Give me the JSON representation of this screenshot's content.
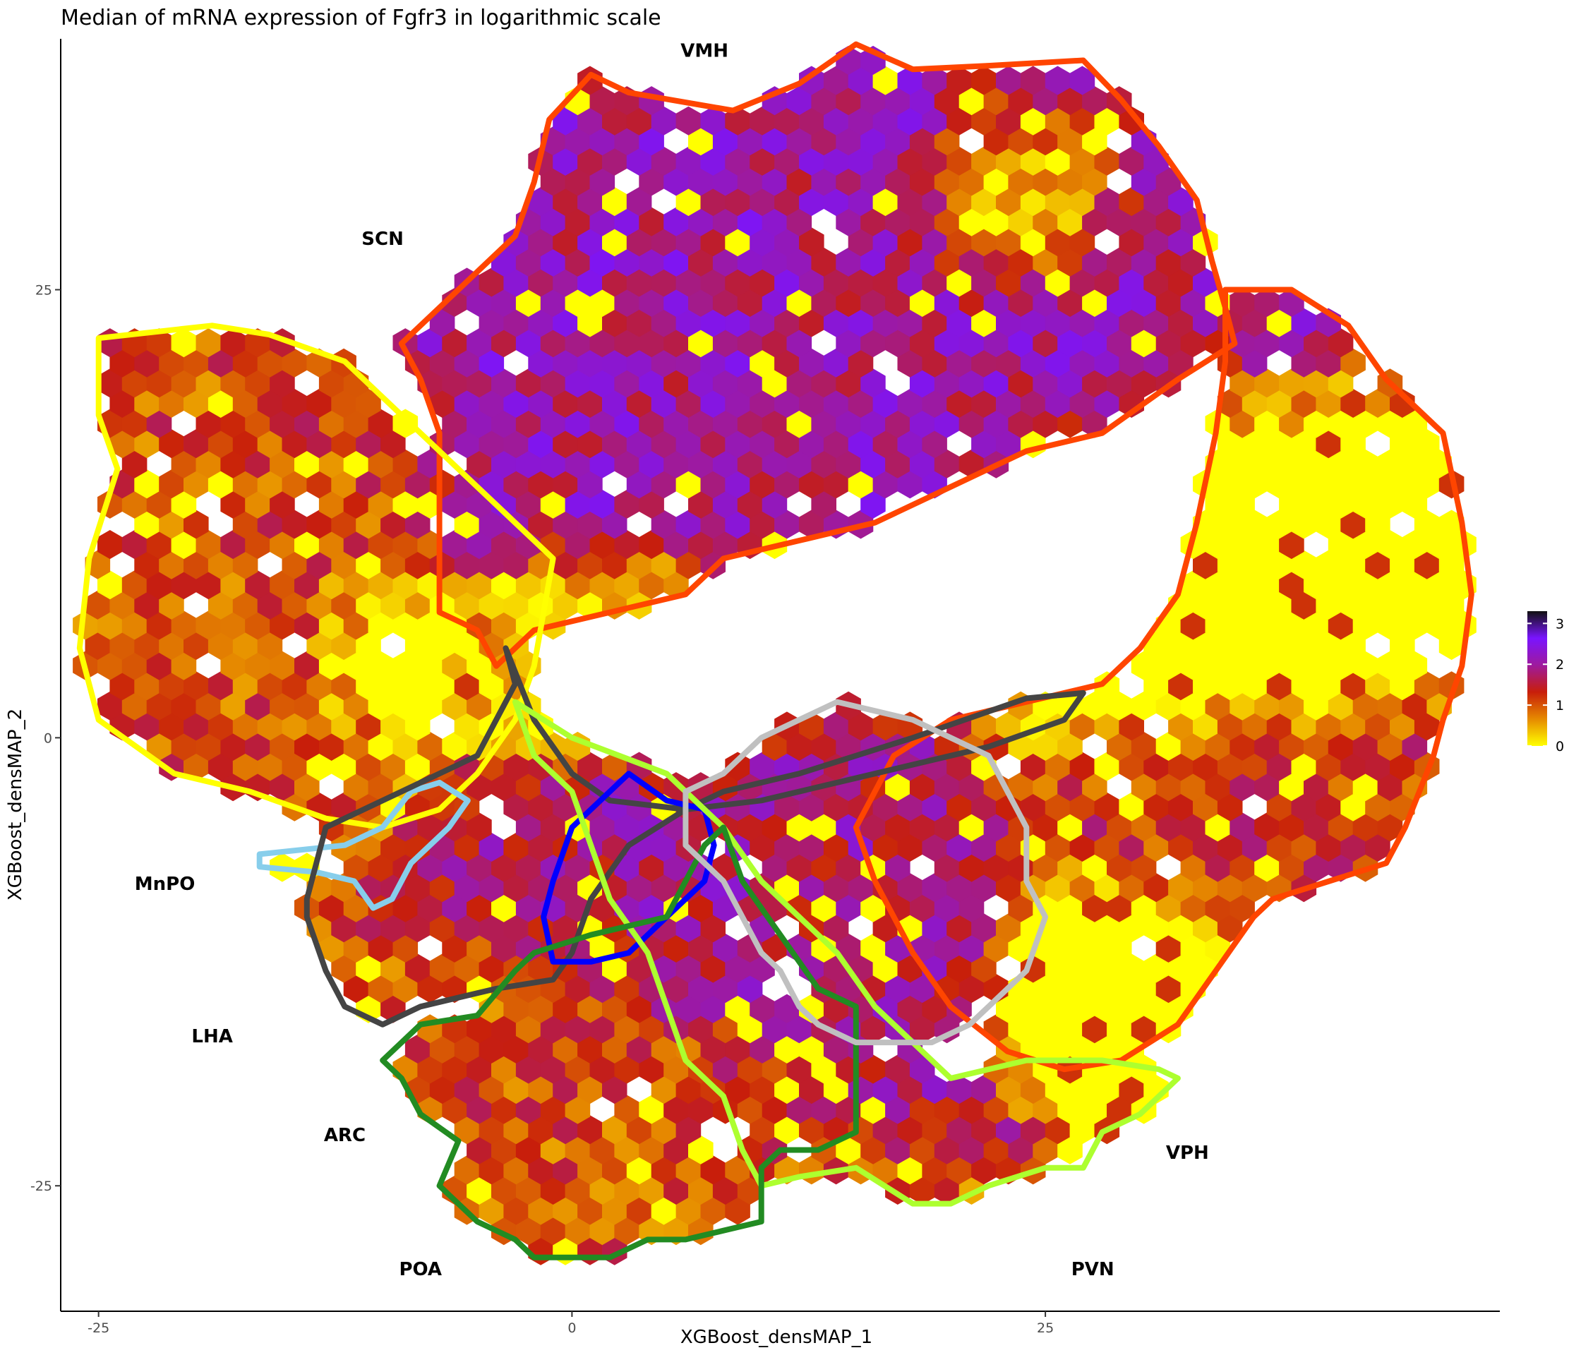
{
  "chart_data": {
    "type": "heatmap",
    "title": "Median of mRNA expression of Fgfr3 in logarithmic scale",
    "xlabel": "XGBoost_densMAP_1",
    "ylabel": "XGBoost_densMAP_2",
    "xlim": [
      -27,
      49
    ],
    "ylim": [
      -32,
      39
    ],
    "x_ticks": [
      -25,
      0,
      25
    ],
    "y_ticks": [
      -25,
      0,
      25
    ],
    "x_tick_labels": [
      "-25",
      "0",
      "25"
    ],
    "y_tick_labels": [
      "-25",
      "0",
      "25"
    ],
    "grid": false,
    "colorbar": {
      "min": 0,
      "max": 3.3,
      "ticks": [
        0,
        1,
        2,
        3
      ],
      "tick_labels": [
        "0",
        "1",
        "2",
        "3"
      ],
      "colors": [
        "#ffff00",
        "#e68a00",
        "#c81e0a",
        "#9e1a9e",
        "#7a14ff",
        "#111111"
      ],
      "placement": "right"
    },
    "hexbins": {
      "bin_width": 1.3,
      "clusters": [
        {
          "cx": 10,
          "cy": 25,
          "rx": 16,
          "ry": 13,
          "level": 2.0
        },
        {
          "cx": 23,
          "cy": 30,
          "rx": 4,
          "ry": 4,
          "level": 0.0
        },
        {
          "cx": -17,
          "cy": 10,
          "rx": 7,
          "ry": 10,
          "level": 1.1
        },
        {
          "cx": -10,
          "cy": 5,
          "rx": 3,
          "ry": 4,
          "level": 0.0
        },
        {
          "cx": 34,
          "cy": 8,
          "rx": 8,
          "ry": 7,
          "level": 0.0
        },
        {
          "cx": 37,
          "cy": -4,
          "rx": 8,
          "ry": 5,
          "level": 1.3
        },
        {
          "cx": 28,
          "cy": -13,
          "rx": 4,
          "ry": 4,
          "level": 0.0
        },
        {
          "cx": 10,
          "cy": -10,
          "rx": 9,
          "ry": 7,
          "level": 1.8
        },
        {
          "cx": 0,
          "cy": -20,
          "rx": 9,
          "ry": 6,
          "level": 1.1
        },
        {
          "cx": 4,
          "cy": 5,
          "rx": 7,
          "ry": 4,
          "level": 0.3
        }
      ]
    },
    "regions": [
      {
        "name": "VMH",
        "color": "#ff4500",
        "outline": [
          [
            -1.2,
            34.5
          ],
          [
            1,
            37
          ],
          [
            3,
            36
          ],
          [
            8.5,
            35
          ],
          [
            12,
            36.5
          ],
          [
            15,
            38.7
          ],
          [
            18,
            37.3
          ],
          [
            22,
            37.5
          ],
          [
            27,
            37.8
          ],
          [
            29,
            35.6
          ],
          [
            31,
            33
          ],
          [
            33,
            30
          ],
          [
            33.8,
            26.6
          ],
          [
            34.5,
            24
          ],
          [
            35,
            22
          ],
          [
            32,
            20
          ],
          [
            28,
            17
          ],
          [
            24,
            16
          ],
          [
            20,
            14
          ],
          [
            16,
            12
          ],
          [
            12,
            11
          ],
          [
            8,
            10
          ],
          [
            6,
            8
          ],
          [
            -2,
            6
          ],
          [
            -4,
            4
          ],
          [
            -5,
            6
          ],
          [
            -7,
            7
          ],
          [
            -7,
            12
          ],
          [
            -7,
            17
          ],
          [
            -8,
            20
          ],
          [
            -9,
            22
          ],
          [
            -7,
            24
          ],
          [
            -5,
            26
          ],
          [
            -3,
            28
          ],
          [
            -2,
            31
          ],
          [
            -1.2,
            34.5
          ]
        ]
      },
      {
        "name": "SCN",
        "color": "#ffff00",
        "outline": [
          [
            -25,
            22.3
          ],
          [
            -19,
            23
          ],
          [
            -16,
            22.5
          ],
          [
            -12,
            21
          ],
          [
            -10,
            19
          ],
          [
            -7,
            16
          ],
          [
            -4,
            13
          ],
          [
            -1,
            10
          ],
          [
            -2,
            4
          ],
          [
            -3,
            1
          ],
          [
            -5,
            -2
          ],
          [
            -7,
            -4
          ],
          [
            -10,
            -5
          ],
          [
            -13,
            -4.5
          ],
          [
            -17,
            -3
          ],
          [
            -21,
            -2
          ],
          [
            -23,
            -0.5
          ],
          [
            -25,
            1
          ],
          [
            -26,
            5
          ],
          [
            -25.5,
            10
          ],
          [
            -24,
            15
          ],
          [
            -25,
            18
          ],
          [
            -25,
            22.3
          ]
        ]
      },
      {
        "name": "VPH",
        "color": "#ff4500",
        "outline": [
          [
            34.5,
            25
          ],
          [
            38,
            25
          ],
          [
            41,
            23
          ],
          [
            43,
            20
          ],
          [
            46,
            17
          ],
          [
            47,
            12
          ],
          [
            47.5,
            8
          ],
          [
            47,
            4
          ],
          [
            46,
            1
          ],
          [
            45.5,
            -1
          ],
          [
            44,
            -5
          ],
          [
            43,
            -7
          ],
          [
            40,
            -8
          ],
          [
            37,
            -9
          ],
          [
            36,
            -10
          ],
          [
            34,
            -13
          ],
          [
            32,
            -16
          ],
          [
            29,
            -18
          ],
          [
            26,
            -18.5
          ],
          [
            23,
            -17.5
          ],
          [
            20,
            -15
          ],
          [
            18,
            -12
          ],
          [
            16,
            -8
          ],
          [
            15,
            -5
          ],
          [
            17,
            -1
          ],
          [
            20,
            1
          ],
          [
            24,
            2
          ],
          [
            28,
            3
          ],
          [
            30,
            5
          ],
          [
            32,
            8
          ],
          [
            33,
            12
          ],
          [
            34,
            17
          ],
          [
            34.5,
            21
          ],
          [
            34.5,
            25
          ]
        ]
      },
      {
        "name": "MnPO",
        "color": "#87ceeb",
        "outline": [
          [
            -16.5,
            -6.5
          ],
          [
            -12,
            -6
          ],
          [
            -10,
            -5
          ],
          [
            -8.5,
            -3
          ],
          [
            -7,
            -2.5
          ],
          [
            -5.5,
            -3.5
          ],
          [
            -6.5,
            -5
          ],
          [
            -8.5,
            -7
          ],
          [
            -9.5,
            -9
          ],
          [
            -10.5,
            -9.5
          ],
          [
            -11.5,
            -8
          ],
          [
            -13.5,
            -7.5
          ],
          [
            -16.5,
            -7.2
          ],
          [
            -16.5,
            -6.5
          ]
        ]
      },
      {
        "name": "LHA",
        "color": "#444444",
        "outline": [
          [
            -14,
            -9
          ],
          [
            -13,
            -5
          ],
          [
            -9,
            -3
          ],
          [
            -5,
            -1
          ],
          [
            -3,
            3
          ],
          [
            -3.5,
            5
          ],
          [
            -2,
            1
          ],
          [
            0,
            -2
          ],
          [
            2,
            -3.5
          ],
          [
            6,
            -4
          ],
          [
            10,
            -3.5
          ],
          [
            16,
            -2
          ],
          [
            22,
            -0.5
          ],
          [
            26,
            1
          ],
          [
            27,
            2.5
          ],
          [
            24,
            2.2
          ],
          [
            18,
            0
          ],
          [
            12,
            -2
          ],
          [
            8,
            -3
          ],
          [
            6,
            -4
          ],
          [
            3,
            -6
          ],
          [
            1,
            -9
          ],
          [
            0,
            -12
          ],
          [
            -1,
            -13.5
          ],
          [
            -4,
            -14
          ],
          [
            -8,
            -15
          ],
          [
            -10,
            -16
          ],
          [
            -12,
            -15
          ],
          [
            -13,
            -13
          ],
          [
            -14,
            -10
          ],
          [
            -14,
            -9
          ]
        ]
      },
      {
        "name": "ARC",
        "color": "#0000ff",
        "outline": [
          [
            0,
            -5
          ],
          [
            2,
            -3
          ],
          [
            3,
            -2
          ],
          [
            5,
            -3.5
          ],
          [
            7,
            -4
          ],
          [
            7.5,
            -6
          ],
          [
            7,
            -8
          ],
          [
            6,
            -9
          ],
          [
            5,
            -10
          ],
          [
            4,
            -11
          ],
          [
            3,
            -12
          ],
          [
            1,
            -12.5
          ],
          [
            -1,
            -12.5
          ],
          [
            -1.5,
            -10
          ],
          [
            -1,
            -8
          ],
          [
            0,
            -5
          ]
        ]
      },
      {
        "name": "PVN",
        "color": "#adff2f",
        "outline": [
          [
            -3,
            2
          ],
          [
            0,
            0
          ],
          [
            5,
            -2
          ],
          [
            8,
            -5
          ],
          [
            10,
            -8
          ],
          [
            12,
            -10
          ],
          [
            14,
            -12
          ],
          [
            16,
            -15
          ],
          [
            18,
            -17
          ],
          [
            20,
            -19
          ],
          [
            24,
            -18
          ],
          [
            28,
            -18
          ],
          [
            31,
            -18.5
          ],
          [
            32,
            -19
          ],
          [
            31,
            -20
          ],
          [
            30,
            -21
          ],
          [
            28,
            -22
          ],
          [
            27,
            -24
          ],
          [
            25,
            -24
          ],
          [
            22,
            -25
          ],
          [
            20,
            -26
          ],
          [
            18,
            -26
          ],
          [
            15,
            -24
          ],
          [
            12,
            -24.5
          ],
          [
            10,
            -25
          ],
          [
            9,
            -23
          ],
          [
            8,
            -20
          ],
          [
            6,
            -18
          ],
          [
            5,
            -15
          ],
          [
            4,
            -12
          ],
          [
            2,
            -9
          ],
          [
            1,
            -6
          ],
          [
            0,
            -3
          ],
          [
            -2,
            -1
          ],
          [
            -3,
            2
          ]
        ]
      },
      {
        "name": "POA",
        "color": "#228b22",
        "outline": [
          [
            -6,
            -22.5
          ],
          [
            -8,
            -21
          ],
          [
            -9,
            -19
          ],
          [
            -10,
            -18
          ],
          [
            -8,
            -16
          ],
          [
            -5,
            -15.5
          ],
          [
            -3,
            -13
          ],
          [
            -2,
            -12
          ],
          [
            1,
            -11
          ],
          [
            3,
            -10.5
          ],
          [
            5,
            -10
          ],
          [
            6,
            -8
          ],
          [
            7,
            -6
          ],
          [
            8,
            -5
          ],
          [
            9,
            -8
          ],
          [
            11,
            -11
          ],
          [
            13,
            -14
          ],
          [
            15,
            -15
          ],
          [
            15,
            -17
          ],
          [
            15,
            -22
          ],
          [
            13,
            -23
          ],
          [
            11,
            -23
          ],
          [
            10,
            -24
          ],
          [
            10,
            -27
          ],
          [
            8,
            -27.5
          ],
          [
            6,
            -28
          ],
          [
            4,
            -28
          ],
          [
            2,
            -29
          ],
          [
            0,
            -29
          ],
          [
            -2,
            -29
          ],
          [
            -3,
            -28
          ],
          [
            -5,
            -27
          ],
          [
            -7,
            -25
          ],
          [
            -6,
            -22.5
          ]
        ]
      },
      {
        "name": "grey",
        "color": "#c0c0c0",
        "outline": [
          [
            6,
            -3
          ],
          [
            8,
            -2
          ],
          [
            10,
            0
          ],
          [
            12,
            1
          ],
          [
            14,
            2
          ],
          [
            16,
            1.5
          ],
          [
            18,
            1
          ],
          [
            20,
            0
          ],
          [
            22,
            -1
          ],
          [
            23,
            -3
          ],
          [
            24,
            -5
          ],
          [
            24,
            -8
          ],
          [
            25,
            -10
          ],
          [
            24,
            -13
          ],
          [
            23,
            -14
          ],
          [
            21,
            -16
          ],
          [
            19,
            -17
          ],
          [
            17,
            -17
          ],
          [
            15,
            -17
          ],
          [
            13,
            -16
          ],
          [
            12,
            -15
          ],
          [
            11,
            -13
          ],
          [
            10,
            -12
          ],
          [
            9,
            -10
          ],
          [
            8,
            -8
          ],
          [
            6,
            -6
          ],
          [
            6,
            -3
          ]
        ]
      }
    ],
    "labels": [
      {
        "text": "VMH",
        "x": 7,
        "y": 38
      },
      {
        "text": "SCN",
        "x": -10,
        "y": 27.5
      },
      {
        "text": "MnPO",
        "x": -21.5,
        "y": -8.5
      },
      {
        "text": "LHA",
        "x": -19,
        "y": -17
      },
      {
        "text": "ARC",
        "x": -12,
        "y": -22.5
      },
      {
        "text": "POA",
        "x": -8,
        "y": -30
      },
      {
        "text": "VPH",
        "x": 32.5,
        "y": -23.5
      },
      {
        "text": "PVN",
        "x": 27.5,
        "y": -30
      }
    ]
  }
}
